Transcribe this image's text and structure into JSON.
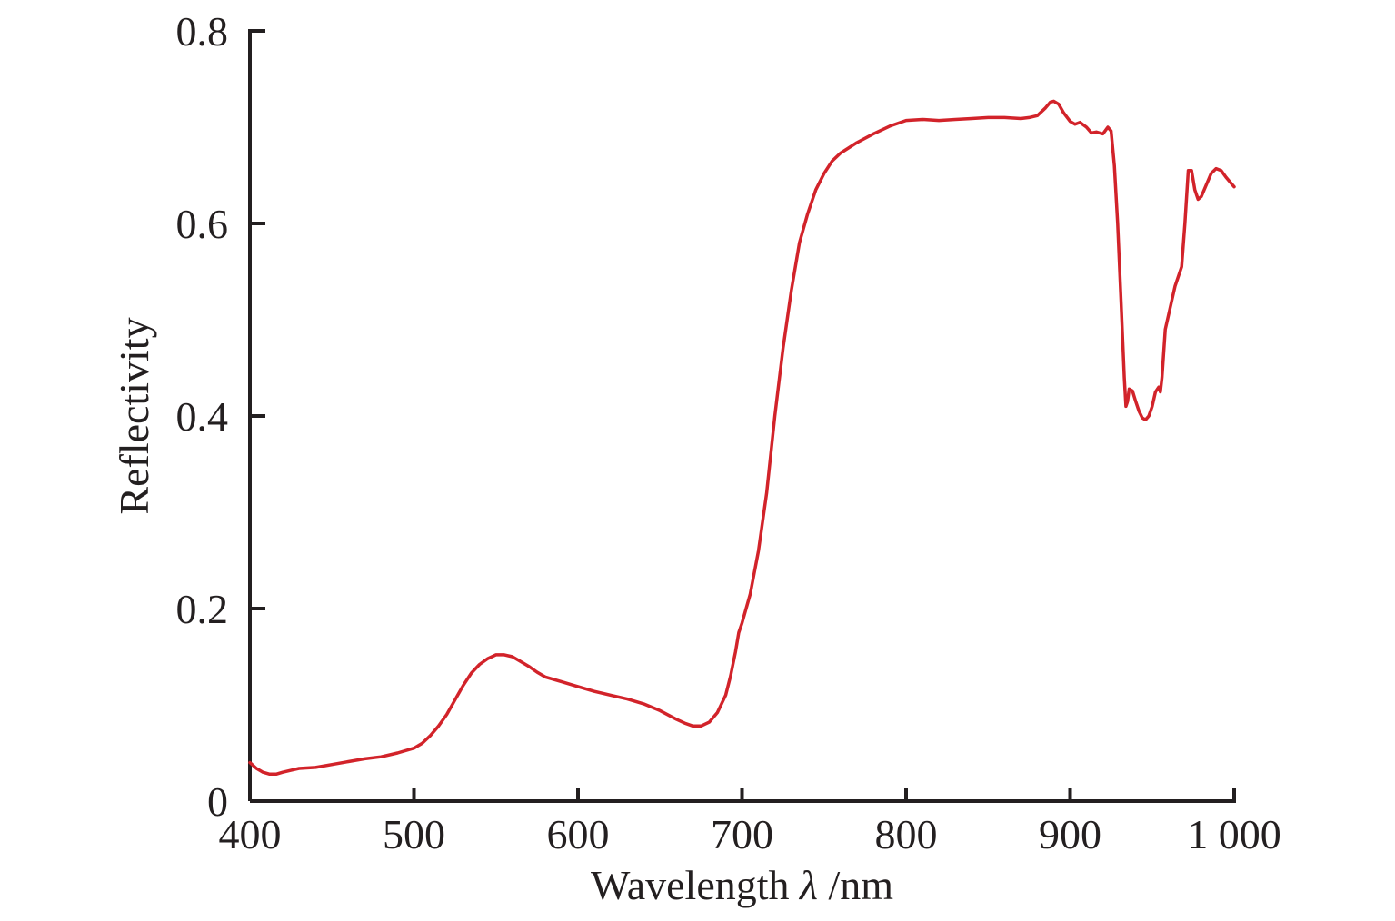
{
  "chart_data": {
    "type": "line",
    "xlabel": "Wavelength",
    "xlabel_symbol": "λ",
    "xlabel_unit": "/nm",
    "ylabel": "Reflectivity",
    "xlim": [
      400,
      1000
    ],
    "ylim": [
      0,
      0.8
    ],
    "x_ticks": [
      {
        "value": 400,
        "label": "400"
      },
      {
        "value": 500,
        "label": "500"
      },
      {
        "value": 600,
        "label": "600"
      },
      {
        "value": 700,
        "label": "700"
      },
      {
        "value": 800,
        "label": "800"
      },
      {
        "value": 900,
        "label": "900"
      },
      {
        "value": 1000,
        "label": "1 000"
      }
    ],
    "y_ticks": [
      {
        "value": 0,
        "label": "0"
      },
      {
        "value": 0.2,
        "label": "0.2"
      },
      {
        "value": 0.4,
        "label": "0.4"
      },
      {
        "value": 0.6,
        "label": "0.6"
      },
      {
        "value": 0.8,
        "label": "0.8"
      }
    ],
    "grid": false,
    "legend": "none",
    "line_color": "#d2232a",
    "axis_color": "#231f20",
    "series": [
      {
        "x": [
          400,
          404,
          408,
          412,
          416,
          420,
          425,
          430,
          440,
          450,
          460,
          470,
          480,
          490,
          500,
          505,
          510,
          515,
          520,
          525,
          530,
          535,
          540,
          545,
          550,
          555,
          560,
          565,
          570,
          575,
          580,
          590,
          600,
          610,
          620,
          630,
          640,
          650,
          660,
          665,
          670,
          675,
          680,
          685,
          690,
          693,
          696,
          698,
          700,
          705,
          710,
          715,
          720,
          725,
          730,
          735,
          740,
          745,
          750,
          755,
          760,
          770,
          780,
          790,
          800,
          810,
          820,
          830,
          840,
          850,
          860,
          870,
          875,
          880,
          885,
          888,
          890,
          893,
          896,
          900,
          903,
          906,
          910,
          913,
          916,
          920,
          923,
          925,
          927,
          929,
          931,
          933,
          934,
          935,
          936,
          938,
          940,
          942,
          944,
          946,
          948,
          950,
          952,
          954,
          955,
          956,
          958,
          960,
          962,
          964,
          966,
          968,
          970,
          972,
          974,
          976,
          978,
          980,
          983,
          986,
          989,
          992,
          995,
          998,
          1000
        ],
        "values": [
          0.04,
          0.034,
          0.03,
          0.028,
          0.028,
          0.03,
          0.032,
          0.034,
          0.035,
          0.038,
          0.041,
          0.044,
          0.046,
          0.05,
          0.055,
          0.06,
          0.068,
          0.078,
          0.09,
          0.105,
          0.12,
          0.133,
          0.142,
          0.148,
          0.152,
          0.152,
          0.15,
          0.145,
          0.14,
          0.134,
          0.129,
          0.124,
          0.119,
          0.114,
          0.11,
          0.106,
          0.101,
          0.094,
          0.085,
          0.081,
          0.078,
          0.078,
          0.082,
          0.092,
          0.11,
          0.13,
          0.155,
          0.175,
          0.185,
          0.215,
          0.26,
          0.32,
          0.4,
          0.47,
          0.53,
          0.58,
          0.61,
          0.635,
          0.652,
          0.665,
          0.673,
          0.684,
          0.693,
          0.701,
          0.707,
          0.708,
          0.707,
          0.708,
          0.709,
          0.71,
          0.71,
          0.709,
          0.71,
          0.712,
          0.72,
          0.726,
          0.727,
          0.724,
          0.715,
          0.706,
          0.703,
          0.705,
          0.7,
          0.694,
          0.695,
          0.693,
          0.7,
          0.696,
          0.66,
          0.6,
          0.52,
          0.44,
          0.41,
          0.415,
          0.428,
          0.426,
          0.415,
          0.405,
          0.398,
          0.396,
          0.4,
          0.41,
          0.425,
          0.43,
          0.425,
          0.44,
          0.49,
          0.505,
          0.52,
          0.535,
          0.545,
          0.555,
          0.6,
          0.655,
          0.655,
          0.635,
          0.625,
          0.628,
          0.64,
          0.652,
          0.657,
          0.655,
          0.648,
          0.642,
          0.638
        ]
      }
    ]
  }
}
